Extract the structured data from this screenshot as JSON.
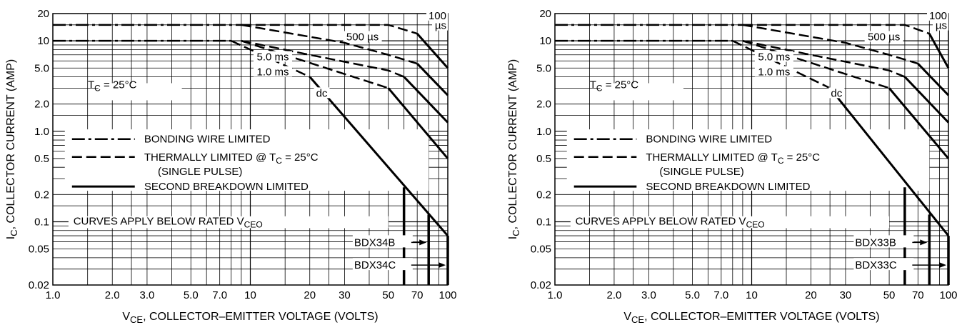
{
  "chart_data": [
    {
      "type": "line",
      "title": "",
      "xlabel": "V",
      "xlabel_sub": "CE",
      "xlabel_rest": ", COLLECTOR–EMITTER VOLTAGE (VOLTS)",
      "ylabel": "I",
      "ylabel_sub": "C",
      "ylabel_rest": ", COLLECTOR CURRENT (AMP)",
      "x_scale": "log",
      "y_scale": "log",
      "xlim": [
        1,
        100
      ],
      "ylim": [
        0.02,
        20
      ],
      "grid": true,
      "x_ticks": [
        {
          "v": 1,
          "label": "1.0"
        },
        {
          "v": 2,
          "label": "2.0"
        },
        {
          "v": 3,
          "label": "3.0"
        },
        {
          "v": 5,
          "label": "5.0"
        },
        {
          "v": 7,
          "label": "7.0"
        },
        {
          "v": 10,
          "label": "10"
        },
        {
          "v": 20,
          "label": "20"
        },
        {
          "v": 30,
          "label": "30"
        },
        {
          "v": 50,
          "label": "50"
        },
        {
          "v": 70,
          "label": "70"
        },
        {
          "v": 100,
          "label": "100"
        }
      ],
      "y_ticks": [
        {
          "v": 20,
          "label": "20"
        },
        {
          "v": 10,
          "label": "10"
        },
        {
          "v": 5,
          "label": "5.0"
        },
        {
          "v": 2,
          "label": "2.0"
        },
        {
          "v": 1,
          "label": "1.0"
        },
        {
          "v": 0.5,
          "label": "0.5"
        },
        {
          "v": 0.2,
          "label": "0.2"
        },
        {
          "v": 0.1,
          "label": "0.1"
        },
        {
          "v": 0.05,
          "label": "0.05"
        },
        {
          "v": 0.02,
          "label": "0.02"
        }
      ],
      "series": [
        {
          "name": "100 µs",
          "style": "dash",
          "points": [
            [
              9,
              15
            ],
            [
              50,
              15
            ],
            [
              70,
              12
            ],
            [
              100,
              5
            ]
          ]
        },
        {
          "name": "100 µs",
          "style": "solid",
          "points": [
            [
              70,
              12
            ],
            [
              100,
              5
            ]
          ]
        },
        {
          "name": "500 µs",
          "style": "dash",
          "points": [
            [
              9,
              15
            ],
            [
              30,
              9.5
            ],
            [
              50,
              7
            ],
            [
              70,
              5.6
            ]
          ]
        },
        {
          "name": "500 µs",
          "style": "solid",
          "points": [
            [
              70,
              5.6
            ],
            [
              100,
              2.5
            ]
          ]
        },
        {
          "name": "5.0 ms",
          "style": "dash",
          "points": [
            [
              9,
              10
            ],
            [
              20,
              7
            ],
            [
              50,
              4.7
            ],
            [
              60,
              4
            ]
          ]
        },
        {
          "name": "5.0 ms",
          "style": "solid",
          "points": [
            [
              60,
              4
            ],
            [
              100,
              1.25
            ]
          ]
        },
        {
          "name": "1.0 ms",
          "style": "dash",
          "points": [
            [
              9,
              10
            ],
            [
              50,
              3
            ]
          ]
        },
        {
          "name": "1.0 ms",
          "style": "solid",
          "points": [
            [
              50,
              3
            ],
            [
              100,
              0.5
            ]
          ]
        },
        {
          "name": "dc",
          "style": "dash",
          "points": [
            [
              8,
              10
            ],
            [
              20,
              4
            ]
          ]
        },
        {
          "name": "dc",
          "style": "solid",
          "points": [
            [
              20,
              4
            ],
            [
              100,
              0.07
            ]
          ]
        },
        {
          "name": "bonding",
          "style": "dashdot",
          "points": [
            [
              1,
              15
            ],
            [
              9,
              15
            ]
          ]
        },
        {
          "name": "bonding",
          "style": "dashdot",
          "points": [
            [
              1,
              10
            ],
            [
              8,
              10
            ]
          ]
        }
      ],
      "verticals": [
        {
          "x": 60,
          "top": 0.24
        },
        {
          "x": 80,
          "top": 0.12
        },
        {
          "x": 100,
          "top": 0.07
        }
      ],
      "curve_labels": [
        {
          "text": "100",
          "x": 100,
          "y": 18
        },
        {
          "text": "µs",
          "x": 100,
          "y": 14
        },
        {
          "text": "500 µs",
          "x": 37,
          "y": 10.5
        },
        {
          "text": "5.0 ms",
          "x": 13,
          "y": 6.3
        },
        {
          "text": "1.0 ms",
          "x": 13,
          "y": 4.3
        },
        {
          "text": "dc",
          "x": 23,
          "y": 2.5
        }
      ],
      "tc_label": {
        "pre": "T",
        "sub": "C",
        "post": " = 25°C"
      },
      "legend": {
        "bonding": "BONDING WIRE LIMITED",
        "thermal_pre": "THERMALLY LIMITED @ T",
        "thermal_sub": "C",
        "thermal_post": " = 25°C",
        "single": "(SINGLE PULSE)",
        "second": "SECOND BREAKDOWN LIMITED",
        "curves_pre": "CURVES APPLY BELOW RATED V",
        "curves_sub": "CEO"
      },
      "device_labels": [
        {
          "text": "BDX34B",
          "arrow_to": 80
        },
        {
          "text": "BDX34C",
          "arrow_to": 100
        }
      ]
    },
    {
      "type": "line",
      "title": "",
      "xlabel": "V",
      "xlabel_sub": "CE",
      "xlabel_rest": ", COLLECTOR–EMITTER VOLTAGE (VOLTS)",
      "ylabel": "I",
      "ylabel_sub": "C",
      "ylabel_rest": ", COLLECTOR CURRENT (AMP)",
      "x_scale": "log",
      "y_scale": "log",
      "xlim": [
        1,
        100
      ],
      "ylim": [
        0.02,
        20
      ],
      "grid": true,
      "x_ticks": [
        {
          "v": 1,
          "label": "1.0"
        },
        {
          "v": 2,
          "label": "2.0"
        },
        {
          "v": 3,
          "label": "3.0"
        },
        {
          "v": 5,
          "label": "5.0"
        },
        {
          "v": 7,
          "label": "7.0"
        },
        {
          "v": 10,
          "label": "10"
        },
        {
          "v": 20,
          "label": "20"
        },
        {
          "v": 30,
          "label": "30"
        },
        {
          "v": 50,
          "label": "50"
        },
        {
          "v": 70,
          "label": "70"
        },
        {
          "v": 100,
          "label": "100"
        }
      ],
      "y_ticks": [
        {
          "v": 20,
          "label": "20"
        },
        {
          "v": 10,
          "label": "10"
        },
        {
          "v": 5,
          "label": "5.0"
        },
        {
          "v": 2,
          "label": "2.0"
        },
        {
          "v": 1,
          "label": "1.0"
        },
        {
          "v": 0.5,
          "label": "0.5"
        },
        {
          "v": 0.2,
          "label": "0.2"
        },
        {
          "v": 0.1,
          "label": "0.1"
        },
        {
          "v": 0.05,
          "label": "0.05"
        },
        {
          "v": 0.02,
          "label": "0.02"
        }
      ],
      "series": [
        {
          "name": "100 µs",
          "style": "dash",
          "points": [
            [
              9,
              15
            ],
            [
              60,
              15
            ],
            [
              80,
              12
            ],
            [
              100,
              5
            ]
          ]
        },
        {
          "name": "100 µs",
          "style": "solid",
          "points": [
            [
              80,
              12
            ],
            [
              100,
              5
            ]
          ]
        },
        {
          "name": "500 µs",
          "style": "dash",
          "points": [
            [
              9,
              15
            ],
            [
              30,
              9.5
            ],
            [
              50,
              7
            ],
            [
              70,
              5.6
            ]
          ]
        },
        {
          "name": "500 µs",
          "style": "solid",
          "points": [
            [
              70,
              5.6
            ],
            [
              100,
              2.5
            ]
          ]
        },
        {
          "name": "5.0 ms",
          "style": "dash",
          "points": [
            [
              9,
              10
            ],
            [
              20,
              7
            ],
            [
              50,
              4.7
            ],
            [
              60,
              4
            ]
          ]
        },
        {
          "name": "5.0 ms",
          "style": "solid",
          "points": [
            [
              60,
              4
            ],
            [
              100,
              1.25
            ]
          ]
        },
        {
          "name": "1.0 ms",
          "style": "dash",
          "points": [
            [
              9,
              10
            ],
            [
              50,
              3
            ]
          ]
        },
        {
          "name": "1.0 ms",
          "style": "solid",
          "points": [
            [
              50,
              3
            ],
            [
              100,
              0.5
            ]
          ]
        },
        {
          "name": "dc",
          "style": "dash",
          "points": [
            [
              8,
              10
            ],
            [
              25,
              3
            ]
          ]
        },
        {
          "name": "dc",
          "style": "solid",
          "points": [
            [
              25,
              3
            ],
            [
              100,
              0.07
            ]
          ]
        },
        {
          "name": "bonding",
          "style": "dashdot",
          "points": [
            [
              1,
              15
            ],
            [
              9,
              15
            ]
          ]
        },
        {
          "name": "bonding",
          "style": "dashdot",
          "points": [
            [
              1,
              10
            ],
            [
              8,
              10
            ]
          ]
        }
      ],
      "verticals": [
        {
          "x": 60,
          "top": 0.24
        },
        {
          "x": 80,
          "top": 0.12
        },
        {
          "x": 100,
          "top": 0.07
        }
      ],
      "curve_labels": [
        {
          "text": "100",
          "x": 100,
          "y": 18
        },
        {
          "text": "µs",
          "x": 100,
          "y": 14
        },
        {
          "text": "500 µs",
          "x": 47,
          "y": 10.5
        },
        {
          "text": "5.0 ms",
          "x": 13,
          "y": 6.3
        },
        {
          "text": "1.0 ms",
          "x": 13,
          "y": 4.3
        },
        {
          "text": "dc",
          "x": 27,
          "y": 2.5
        }
      ],
      "tc_label": {
        "pre": "T",
        "sub": "C",
        "post": " = 25°C"
      },
      "legend": {
        "bonding": "BONDING WIRE LIMITED",
        "thermal_pre": "THERMALLY LIMITED @ T",
        "thermal_sub": "C",
        "thermal_post": " = 25°C",
        "single": "(SINGLE PULSE)",
        "second": "SECOND BREAKDOWN LIMITED",
        "curves_pre": "CURVES APPLY BELOW RATED V",
        "curves_sub": "CEO"
      },
      "device_labels": [
        {
          "text": "BDX33B",
          "arrow_to": 80
        },
        {
          "text": "BDX33C",
          "arrow_to": 100
        }
      ]
    }
  ]
}
